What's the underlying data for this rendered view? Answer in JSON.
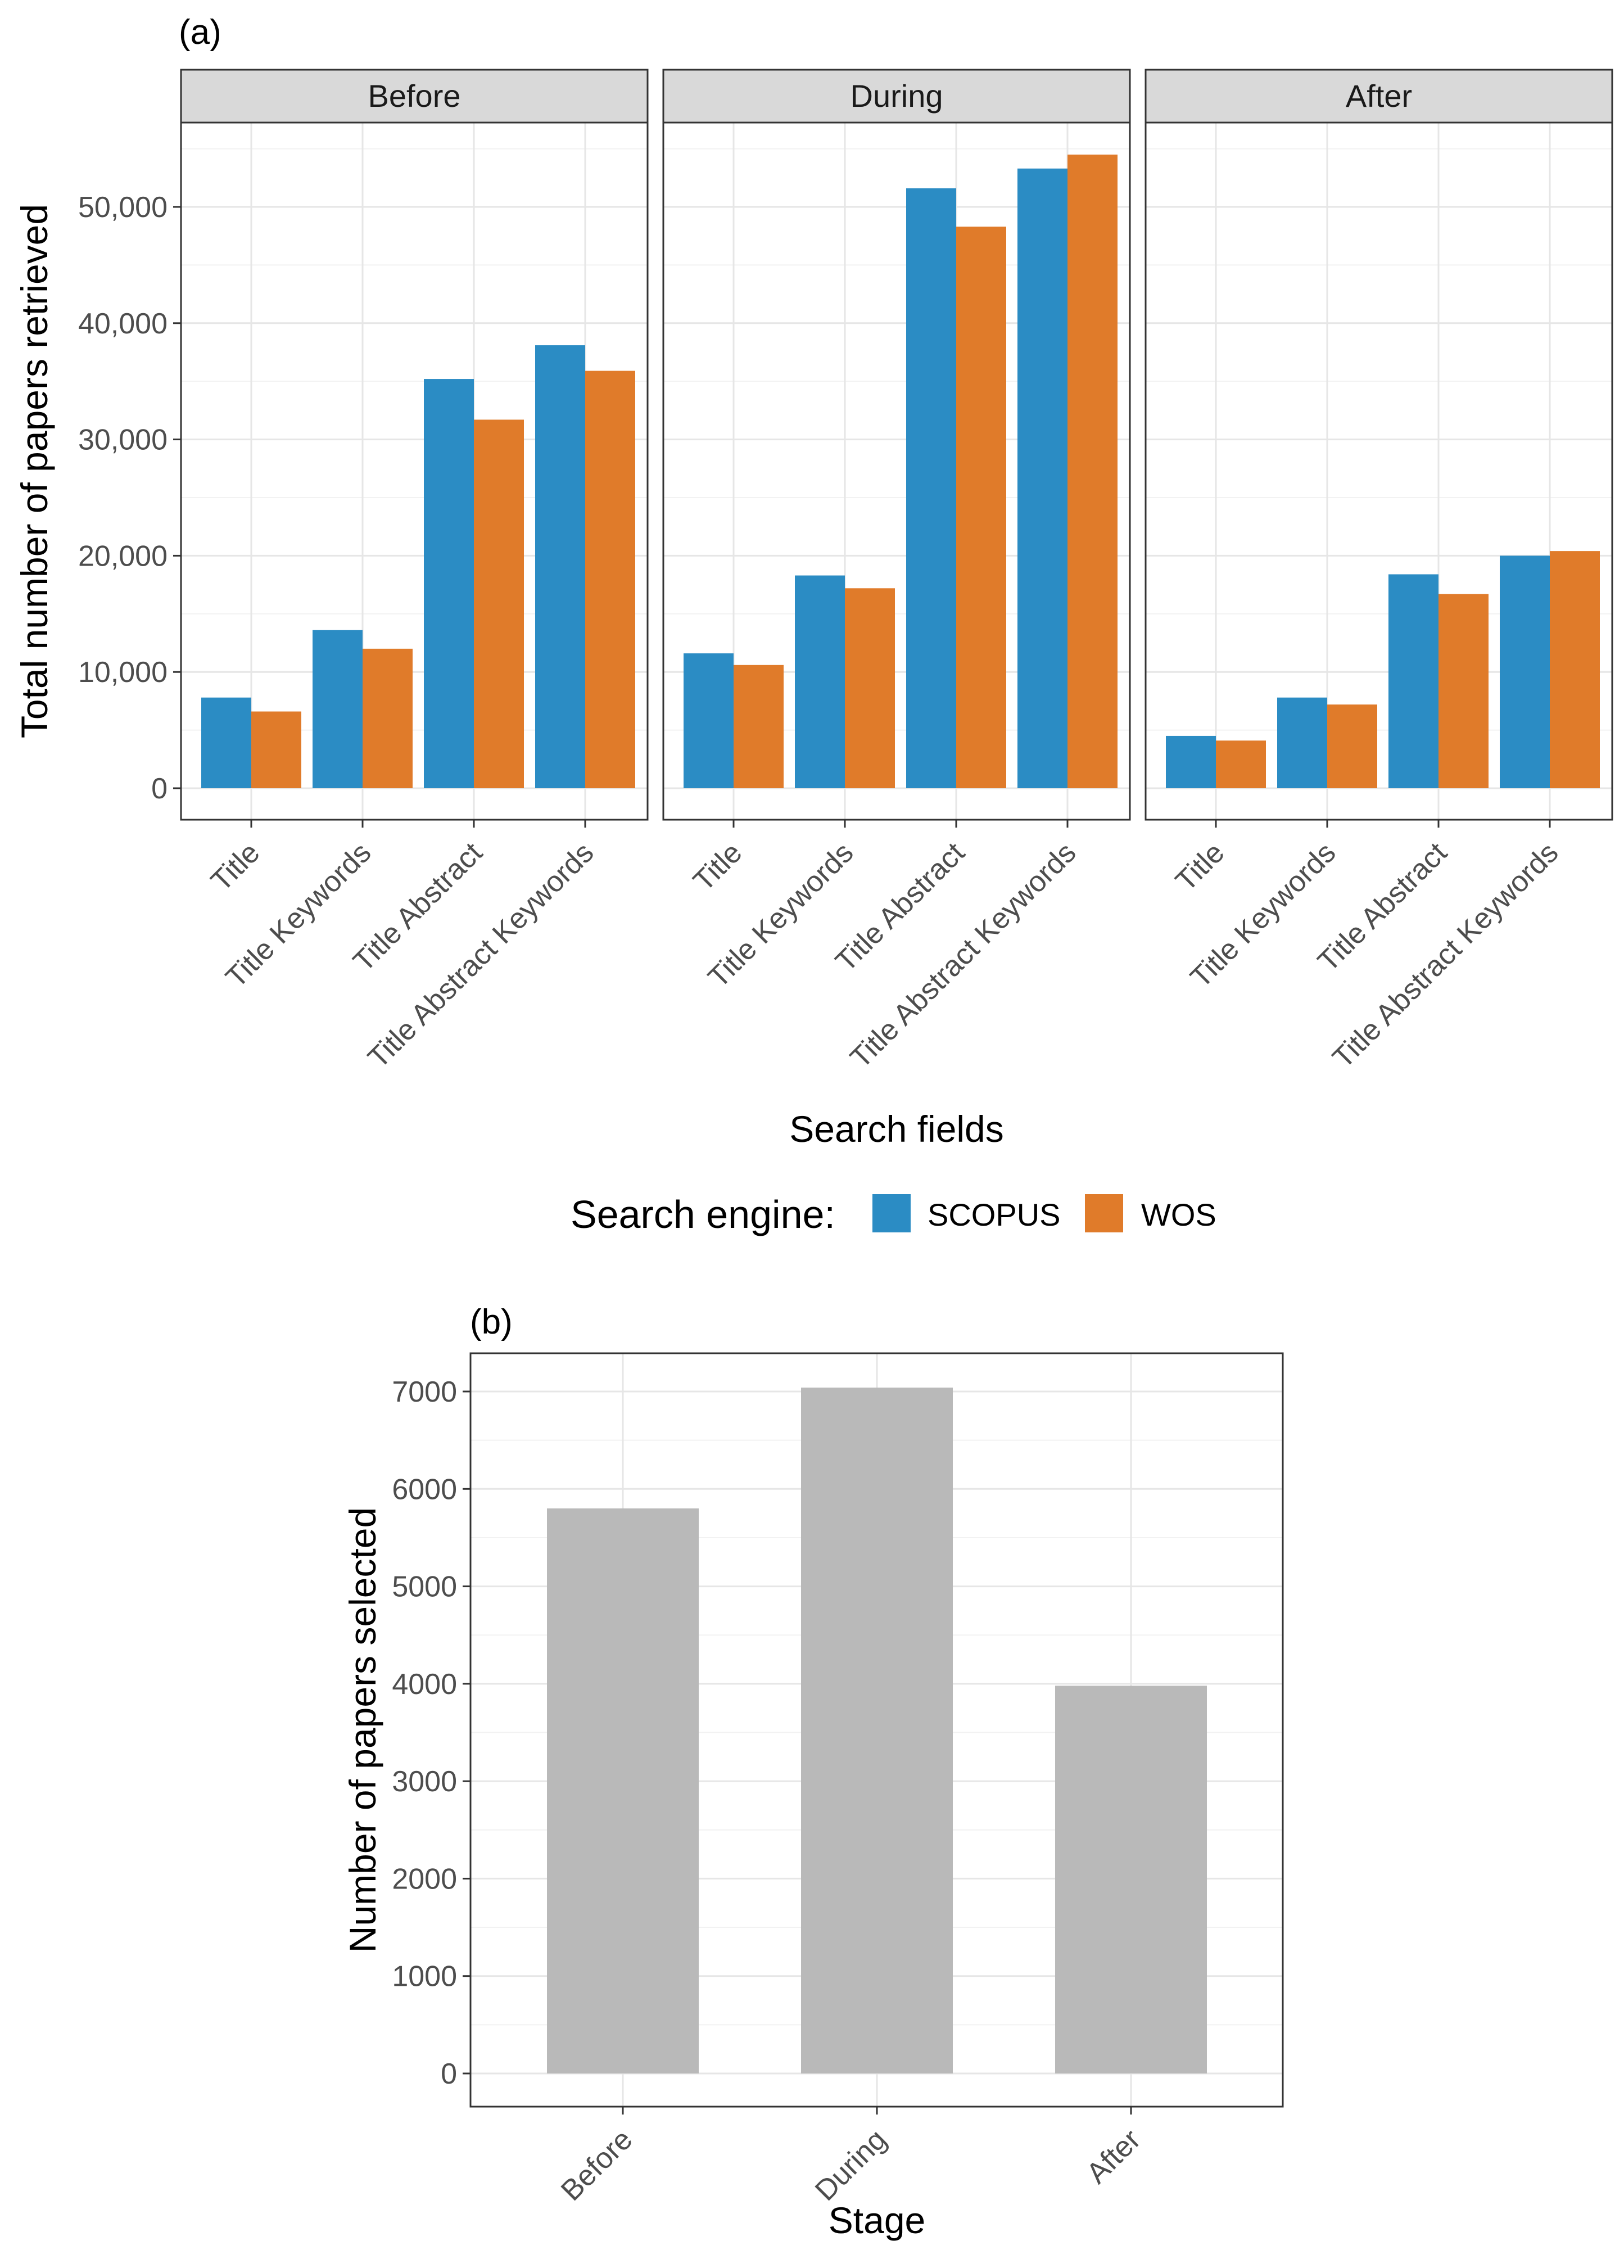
{
  "chart_data": [
    {
      "type": "bar",
      "panel_label": "(a)",
      "facets": [
        "Before",
        "During",
        "After"
      ],
      "categories": [
        "Title",
        "Title Keywords",
        "Title Abstract",
        "Title Abstract Keywords"
      ],
      "series": [
        {
          "name": "SCOPUS",
          "color": "#2B8CC4",
          "values": {
            "Before": [
              7800,
              13600,
              35200,
              38100
            ],
            "During": [
              11600,
              18300,
              51600,
              53300
            ],
            "After": [
              4500,
              7800,
              18400,
              20000
            ]
          }
        },
        {
          "name": "WOS",
          "color": "#E07B2A",
          "values": {
            "Before": [
              6600,
              12000,
              31700,
              35900
            ],
            "During": [
              10600,
              17200,
              48300,
              54500
            ],
            "After": [
              4100,
              7200,
              16700,
              20400
            ]
          }
        }
      ],
      "ylim": [
        0,
        57000
      ],
      "yticks": [
        0,
        10000,
        20000,
        30000,
        40000,
        50000
      ],
      "ytick_labels": [
        "0",
        "10,000",
        "20,000",
        "30,000",
        "40,000",
        "50,000"
      ],
      "xlabel": "Search fields",
      "ylabel": "Total number of papers retrieved",
      "legend_title": "Search engine:",
      "legend_position": "bottom",
      "grid": true
    },
    {
      "type": "bar",
      "panel_label": "(b)",
      "categories": [
        "Before",
        "During",
        "After"
      ],
      "values": [
        5800,
        7040,
        3980
      ],
      "color": "#B9B9B9",
      "ylim": [
        0,
        7400
      ],
      "yticks": [
        0,
        1000,
        2000,
        3000,
        4000,
        5000,
        6000,
        7000
      ],
      "ytick_labels": [
        "0",
        "1000",
        "2000",
        "3000",
        "4000",
        "5000",
        "6000",
        "7000"
      ],
      "xlabel": "Stage",
      "ylabel": "Number of papers selected",
      "grid": true
    }
  ]
}
